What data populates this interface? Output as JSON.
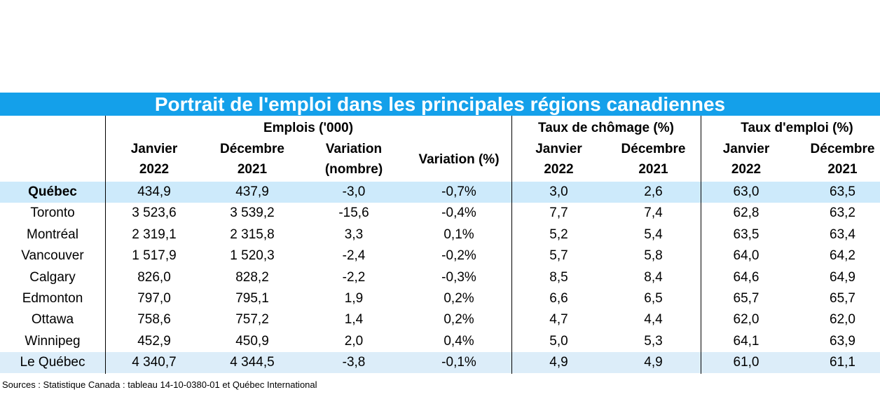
{
  "title": "Portrait de l'emploi dans les principales régions canadiennes",
  "header": {
    "groups": [
      "Emplois ('000)",
      "Taux de chômage (%)",
      "Taux d'emploi (%)"
    ],
    "columns": [
      [
        "Janvier",
        "2022"
      ],
      [
        "Décembre",
        "2021"
      ],
      [
        "Variation",
        "(nombre)"
      ],
      [
        "Variation (%)"
      ],
      [
        "Janvier",
        "2022"
      ],
      [
        "Décembre",
        "2021"
      ],
      [
        "Janvier",
        "2022"
      ],
      [
        "Décembre",
        "2021"
      ]
    ]
  },
  "table": {
    "rows": [
      [
        "Québec",
        "434,9",
        "437,9",
        "-3,0",
        "-0,7%",
        "3,0",
        "2,6",
        "63,0",
        "63,5"
      ],
      [
        "Toronto",
        "3 523,6",
        "3 539,2",
        "-15,6",
        "-0,4%",
        "7,7",
        "7,4",
        "62,8",
        "63,2"
      ],
      [
        "Montréal",
        "2 319,1",
        "2 315,8",
        "3,3",
        "0,1%",
        "5,2",
        "5,4",
        "63,5",
        "63,4"
      ],
      [
        "Vancouver",
        "1 517,9",
        "1 520,3",
        "-2,4",
        "-0,2%",
        "5,7",
        "5,8",
        "64,0",
        "64,2"
      ],
      [
        "Calgary",
        "826,0",
        "828,2",
        "-2,2",
        "-0,3%",
        "8,5",
        "8,4",
        "64,6",
        "64,9"
      ],
      [
        "Edmonton",
        "797,0",
        "795,1",
        "1,9",
        "0,2%",
        "6,6",
        "6,5",
        "65,7",
        "65,7"
      ],
      [
        "Ottawa",
        "758,6",
        "757,2",
        "1,4",
        "0,2%",
        "4,7",
        "4,4",
        "62,0",
        "62,0"
      ],
      [
        "Winnipeg",
        "452,9",
        "450,9",
        "2,0",
        "0,4%",
        "5,0",
        "5,3",
        "64,1",
        "63,9"
      ],
      [
        "Le Québec",
        "4 340,7",
        "4 344,5",
        "-3,8",
        "-0,1%",
        "4,9",
        "4,9",
        "61,0",
        "61,1"
      ]
    ]
  },
  "source": "Sources : Statistique Canada : tableau 14-10-0380-01 et Québec International"
}
